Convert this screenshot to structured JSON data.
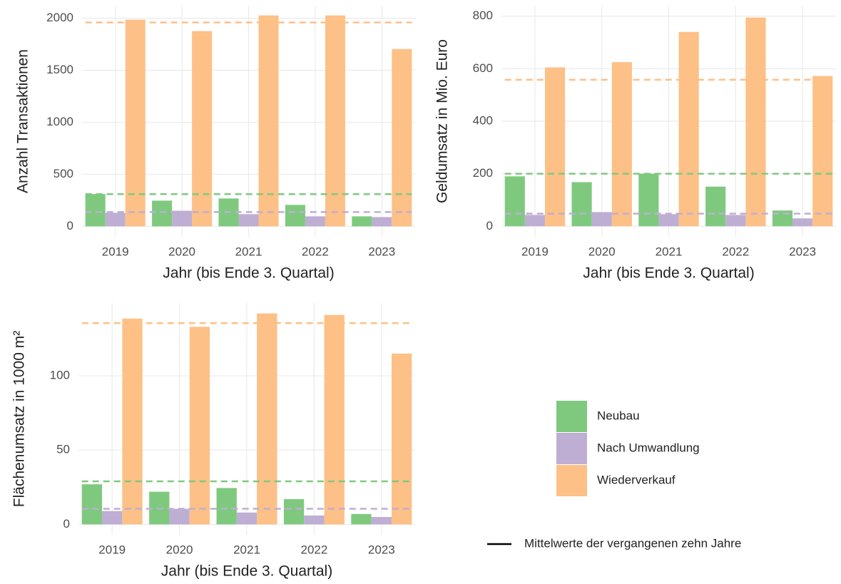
{
  "chart_data": [
    {
      "type": "bar",
      "y_label": "Anzahl Transaktionen",
      "x_label": "Jahr (bis Ende 3. Quartal)",
      "categories": [
        "2019",
        "2020",
        "2021",
        "2022",
        "2023"
      ],
      "series": [
        {
          "name": "Neubau",
          "color": "#7fc97f",
          "values": [
            310,
            247,
            268,
            206,
            96
          ],
          "mean": 309
        },
        {
          "name": "Nach Umwandlung",
          "color": "#beaed4",
          "values": [
            130,
            150,
            117,
            96,
            89
          ],
          "mean": 137
        },
        {
          "name": "Wiederverkauf",
          "color": "#fdc086",
          "values": [
            1986,
            1876,
            2027,
            2027,
            1704
          ],
          "mean": 1959
        }
      ],
      "ylim": [
        -100,
        2120
      ],
      "yticks": [
        0,
        500,
        1000,
        1500,
        2000
      ],
      "grid": true
    },
    {
      "type": "bar",
      "y_label": "Geldumsatz in Mio. Euro",
      "x_label": "Jahr (bis Ende 3. Quartal)",
      "categories": [
        "2019",
        "2020",
        "2021",
        "2022",
        "2023"
      ],
      "series": [
        {
          "name": "Neubau",
          "color": "#7fc97f",
          "values": [
            190,
            168,
            200,
            151,
            60
          ],
          "mean": 200
        },
        {
          "name": "Nach Umwandlung",
          "color": "#beaed4",
          "values": [
            43,
            54,
            46,
            43,
            30
          ],
          "mean": 48
        },
        {
          "name": "Wiederverkauf",
          "color": "#fdc086",
          "values": [
            605,
            625,
            740,
            795,
            572
          ],
          "mean": 558
        }
      ],
      "ylim": [
        -40,
        840
      ],
      "yticks": [
        0,
        200,
        400,
        600,
        800
      ],
      "grid": true
    },
    {
      "type": "bar",
      "y_label": "Flächenumsatz in 1000 m²",
      "x_label": "Jahr (bis Ende 3. Quartal)",
      "categories": [
        "2019",
        "2020",
        "2021",
        "2022",
        "2023"
      ],
      "series": [
        {
          "name": "Neubau",
          "color": "#7fc97f",
          "values": [
            27,
            22,
            24.5,
            17,
            7
          ],
          "mean": 29
        },
        {
          "name": "Nach Umwandlung",
          "color": "#beaed4",
          "values": [
            9,
            10.5,
            8,
            6,
            5
          ],
          "mean": 10.5
        },
        {
          "name": "Wiederverkauf",
          "color": "#fdc086",
          "values": [
            138.5,
            133,
            142,
            141,
            115
          ],
          "mean": 135.5
        }
      ],
      "ylim": [
        -7,
        149
      ],
      "yticks": [
        0,
        50,
        100
      ],
      "grid": true
    }
  ],
  "legend_note": "Mittelwerte der vergangenen zehn Jahre"
}
